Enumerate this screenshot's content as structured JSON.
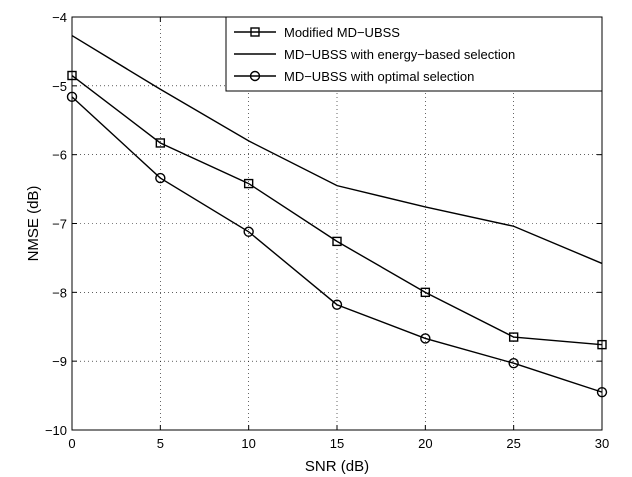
{
  "chart_data": {
    "type": "line",
    "xlabel": "SNR (dB)",
    "ylabel": "NMSE (dB)",
    "xlim": [
      0,
      30
    ],
    "ylim": [
      -10,
      -4
    ],
    "x_ticks": [
      0,
      5,
      10,
      15,
      20,
      25,
      30
    ],
    "y_ticks": [
      -10,
      -9,
      -8,
      -7,
      -6,
      -5,
      -4
    ],
    "grid": true,
    "legend_position": "top-right",
    "x": [
      0,
      5,
      10,
      15,
      20,
      25,
      30
    ],
    "series": [
      {
        "name": "Modified MD−UBSS",
        "marker": "square",
        "values": [
          -4.85,
          -5.83,
          -6.42,
          -7.26,
          -8.0,
          -8.65,
          -8.76
        ]
      },
      {
        "name": "MD−UBSS with energy−based selection",
        "marker": "none",
        "values": [
          -4.27,
          -5.05,
          -5.8,
          -6.45,
          -6.76,
          -7.04,
          -7.58
        ]
      },
      {
        "name": "MD−UBSS with optimal selection",
        "marker": "circle",
        "values": [
          -5.16,
          -6.34,
          -7.12,
          -8.18,
          -8.67,
          -9.03,
          -9.45
        ]
      }
    ]
  }
}
